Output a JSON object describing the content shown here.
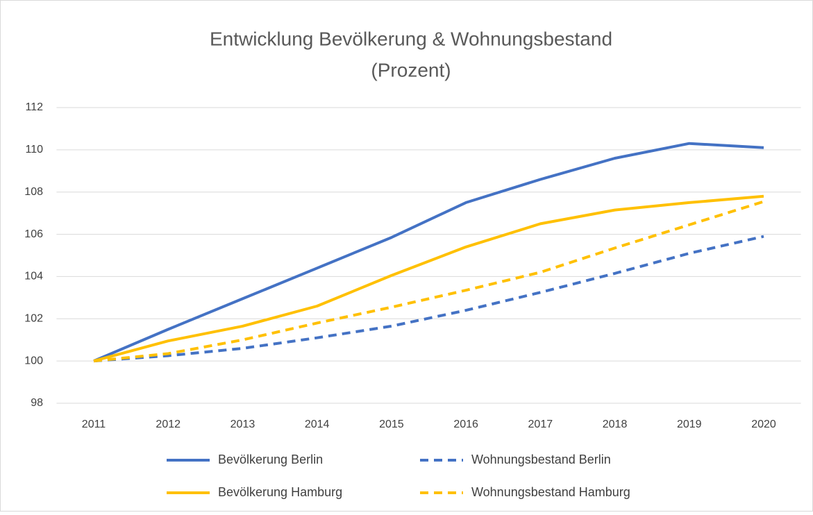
{
  "chart_data": {
    "type": "line",
    "title": [
      "Entwicklung Bevölkerung & Wohnungsbestand",
      "(Prozent)"
    ],
    "categories": [
      "2011",
      "2012",
      "2013",
      "2014",
      "2015",
      "2016",
      "2017",
      "2018",
      "2019",
      "2020"
    ],
    "series": [
      {
        "name": "Bevölkerung Berlin",
        "color": "#4472c4",
        "dashed": false,
        "values": [
          100,
          101.5,
          102.95,
          104.4,
          105.85,
          107.5,
          108.6,
          109.6,
          110.3,
          110.1
        ]
      },
      {
        "name": "Wohnungsbestand Berlin",
        "color": "#4472c4",
        "dashed": true,
        "values": [
          100,
          100.25,
          100.6,
          101.1,
          101.65,
          102.4,
          103.25,
          104.15,
          105.1,
          105.9
        ]
      },
      {
        "name": "Bevölkerung Hamburg",
        "color": "#ffc000",
        "dashed": false,
        "values": [
          100,
          100.95,
          101.65,
          102.6,
          104.05,
          105.4,
          106.5,
          107.15,
          107.5,
          107.8
        ]
      },
      {
        "name": "Wohnungsbestand Hamburg",
        "color": "#ffc000",
        "dashed": true,
        "values": [
          100,
          100.35,
          101.0,
          101.8,
          102.55,
          103.35,
          104.2,
          105.35,
          106.45,
          107.55
        ]
      }
    ],
    "ylim": [
      98,
      112
    ],
    "yticks": [
      98,
      100,
      102,
      104,
      106,
      108,
      110,
      112
    ],
    "grid": true,
    "legend": "bottom"
  }
}
